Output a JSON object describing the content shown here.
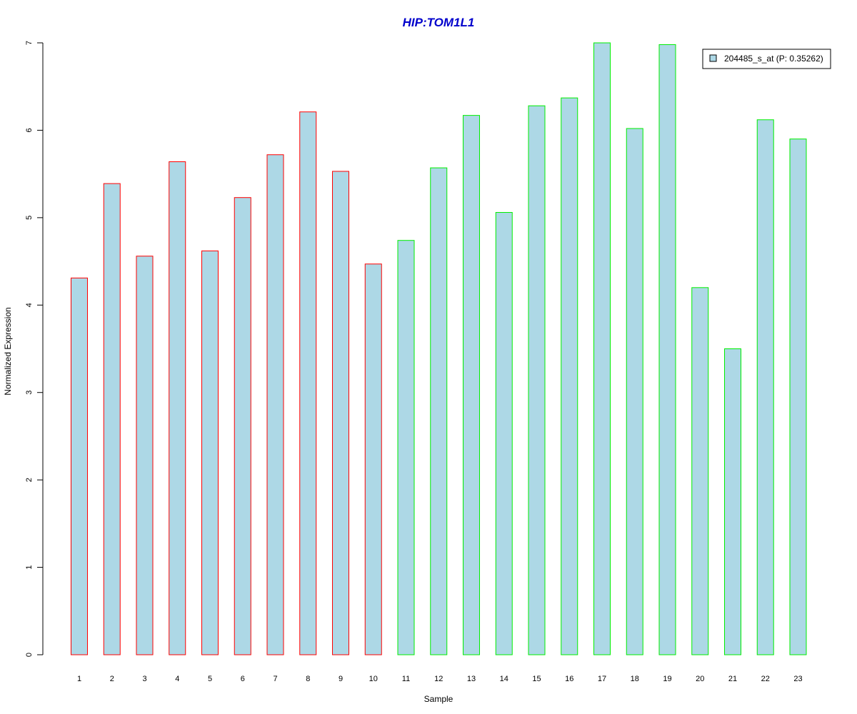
{
  "chart_data": {
    "type": "bar",
    "title": "HIP:TOM1L1",
    "xlabel": "Sample",
    "ylabel": "Normalized Expression",
    "ylim": [
      0,
      7
    ],
    "yticks": [
      0,
      1,
      2,
      3,
      4,
      5,
      6,
      7
    ],
    "grid": false,
    "legend": {
      "placement": "top-right",
      "entries": [
        {
          "label": "204485_s_at (P: 0.35262)",
          "fill": "#ADD8E6"
        }
      ]
    },
    "categories": [
      "1",
      "2",
      "3",
      "4",
      "5",
      "6",
      "7",
      "8",
      "9",
      "10",
      "11",
      "12",
      "13",
      "14",
      "15",
      "16",
      "17",
      "18",
      "19",
      "20",
      "21",
      "22",
      "23"
    ],
    "series": [
      {
        "name": "204485_s_at (P: 0.35262)",
        "values": [
          4.31,
          5.39,
          4.56,
          5.64,
          4.62,
          5.23,
          5.72,
          6.21,
          5.53,
          4.47,
          4.74,
          5.57,
          6.17,
          5.06,
          6.28,
          6.37,
          7.0,
          6.02,
          6.98,
          4.2,
          3.5,
          6.12,
          5.9
        ],
        "groups": [
          1,
          1,
          1,
          1,
          1,
          1,
          1,
          1,
          1,
          1,
          2,
          2,
          2,
          2,
          2,
          2,
          2,
          2,
          2,
          2,
          2,
          2,
          2
        ]
      }
    ],
    "colors": {
      "title": "#0000CC",
      "bar_fill": "#ADD8E6",
      "group_1_border": "#FF0000",
      "group_2_border": "#00EE00",
      "axis": "#000000"
    }
  }
}
